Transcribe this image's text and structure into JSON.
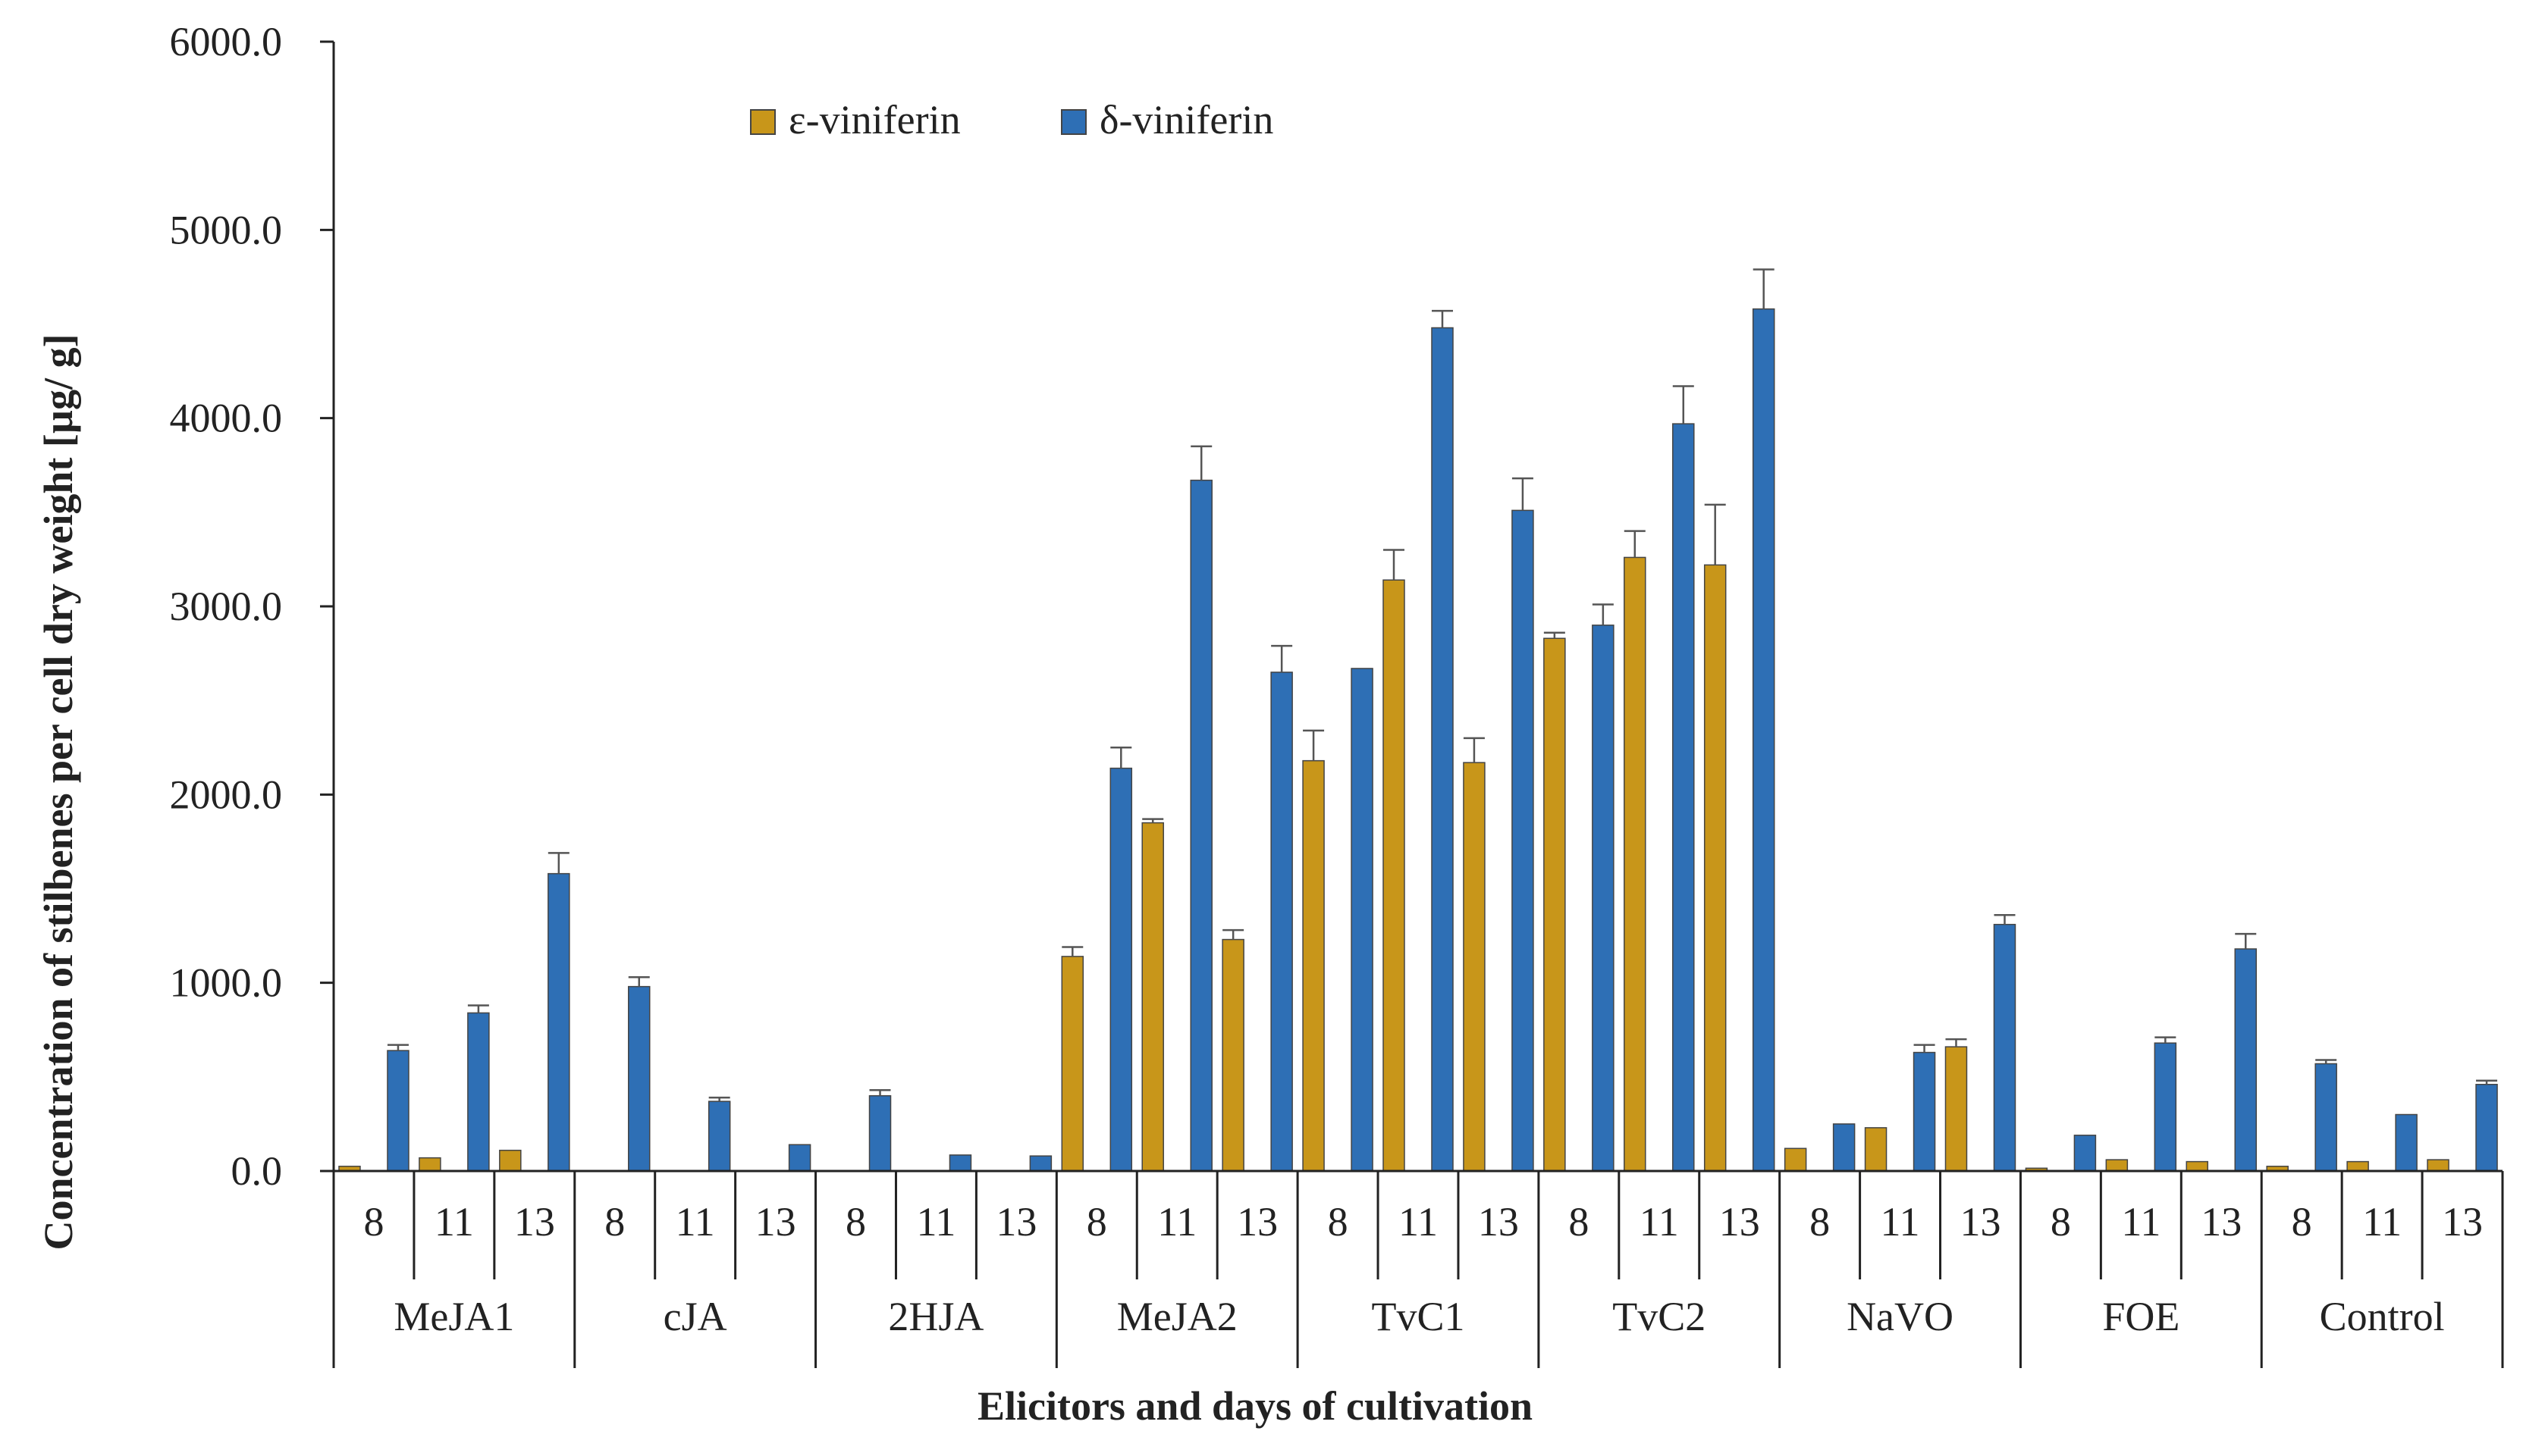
{
  "chart_data": {
    "type": "bar",
    "ylabel": "Concentration of stilbenes per cell dry weight  [µg/ g]",
    "xlabel": "Elicitors and days of cultivation",
    "ylim": [
      0,
      6000
    ],
    "yticks": [
      "0.0",
      "1000.0",
      "2000.0",
      "3000.0",
      "4000.0",
      "5000.0",
      "6000.0"
    ],
    "tick_values": [
      0,
      1000,
      2000,
      3000,
      4000,
      5000,
      6000
    ],
    "legend_position": "top-left",
    "groups": [
      "MeJA1",
      "cJA",
      "2HJA",
      "MeJA2",
      "TvC1",
      "TvC2",
      "NaVO",
      "FOE",
      "Control"
    ],
    "days": [
      "8",
      "11",
      "13"
    ],
    "series": [
      {
        "name": "ε-viniferin",
        "color": "#c8961a",
        "values": [
          25,
          70,
          110,
          0,
          0,
          0,
          0,
          0,
          0,
          1140,
          1850,
          1230,
          2180,
          3140,
          2170,
          2830,
          3260,
          3220,
          120,
          230,
          660,
          15,
          60,
          50,
          25,
          50,
          60
        ],
        "errors": [
          0,
          0,
          0,
          0,
          0,
          0,
          0,
          0,
          0,
          50,
          20,
          50,
          160,
          160,
          130,
          30,
          140,
          320,
          0,
          0,
          40,
          0,
          0,
          0,
          0,
          0,
          0
        ]
      },
      {
        "name": "δ-viniferin",
        "color": "#2e6fb5",
        "values": [
          640,
          840,
          1580,
          980,
          370,
          140,
          400,
          85,
          80,
          2140,
          3670,
          2650,
          2670,
          4480,
          3510,
          2900,
          3970,
          4580,
          250,
          630,
          1310,
          190,
          680,
          1180,
          570,
          300,
          460
        ],
        "errors": [
          30,
          40,
          110,
          50,
          20,
          0,
          30,
          0,
          0,
          110,
          180,
          140,
          0,
          90,
          170,
          110,
          200,
          210,
          0,
          40,
          50,
          0,
          30,
          80,
          20,
          0,
          20
        ]
      }
    ]
  }
}
